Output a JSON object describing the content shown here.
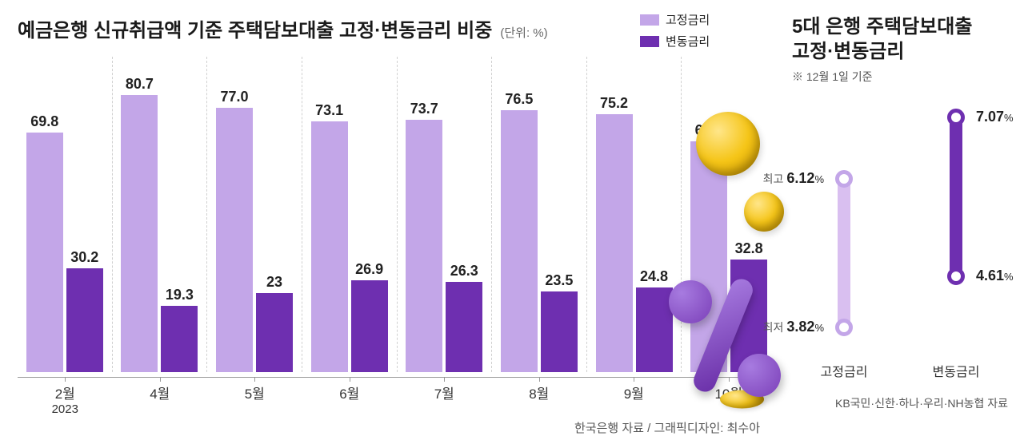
{
  "left": {
    "title": "예금은행 신규취급액 기준 주택담보대출 고정·변동금리 비중",
    "unit": "(단위: %)",
    "legend": {
      "fixed": {
        "label": "고정금리",
        "color": "#c3a6e8"
      },
      "variable": {
        "label": "변동금리",
        "color": "#6e2fb0"
      }
    },
    "chart": {
      "type": "bar",
      "y_max": 85,
      "bar_colors": {
        "fixed": "#c3a6e8",
        "variable": "#6e2fb0"
      },
      "label_fontsize": 18,
      "categories": [
        "2월",
        "4월",
        "5월",
        "6월",
        "7월",
        "8월",
        "9월",
        "10월"
      ],
      "year_sub": "2023",
      "series": {
        "fixed": [
          69.8,
          80.7,
          77.0,
          73.1,
          73.7,
          76.5,
          75.2,
          67.2
        ],
        "variable": [
          30.2,
          19.3,
          23,
          26.9,
          26.3,
          23.5,
          24.8,
          32.8
        ]
      },
      "display": {
        "fixed": [
          "69.8",
          "80.7",
          "77.0",
          "73.1",
          "73.7",
          "76.5",
          "75.2",
          "67.2"
        ],
        "variable": [
          "30.2",
          "19.3",
          "23",
          "26.9",
          "26.3",
          "23.5",
          "24.8",
          "32.8"
        ]
      }
    },
    "source": "한국은행 자료 / 그래픽디자인: 최수아"
  },
  "right": {
    "title_l1": "5대 은행 주택담보대출",
    "title_l2": "고정·변동금리",
    "note": "※ 12월 1일 기준",
    "range": {
      "y_min": 3.5,
      "y_max": 7.2,
      "tag_high": "최고",
      "tag_low": "최저",
      "fixed": {
        "label": "고정금리",
        "low": 3.82,
        "low_display": "3.82",
        "high": 6.12,
        "high_display": "6.12",
        "color": "#d9bff0",
        "dot_border": "#c3a6e8"
      },
      "variable": {
        "label": "변동금리",
        "low": 4.61,
        "low_display": "4.61",
        "high": 7.07,
        "high_display": "7.07",
        "color": "#6e2fb0",
        "dot_border": "#6e2fb0"
      },
      "pct_sign": "%"
    },
    "source": "KB국민·신한·하나·우리·NH농협 자료"
  }
}
